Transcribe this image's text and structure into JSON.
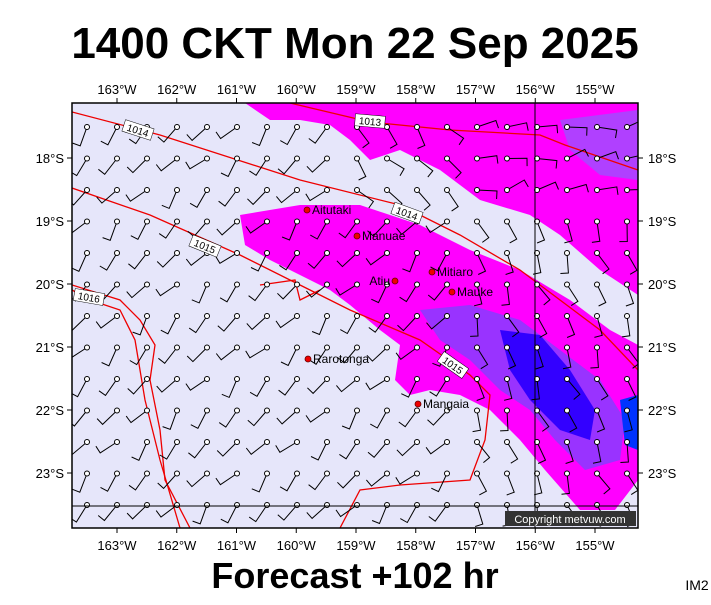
{
  "header": {
    "title": "1400 CKT Mon 22 Sep 2025"
  },
  "footer": {
    "forecast": "Forecast +102 hr",
    "code": "IM2",
    "copyright": "Copyright metvuw.com"
  },
  "map": {
    "longitude_labels": [
      "163°W",
      "162°W",
      "161°W",
      "160°W",
      "159°W",
      "158°W",
      "157°W",
      "156°W",
      "155°W"
    ],
    "latitude_labels": [
      "18°S",
      "19°S",
      "20°S",
      "21°S",
      "22°S",
      "23°S"
    ],
    "places": [
      "Aitutaki",
      "Manuae",
      "Atiu",
      "Mitiaro",
      "Mauke",
      "Rarotonga",
      "Mangaia"
    ],
    "isobar_labels": [
      "1014",
      "1013",
      "1014",
      "1015",
      "1016",
      "1015"
    ]
  }
}
